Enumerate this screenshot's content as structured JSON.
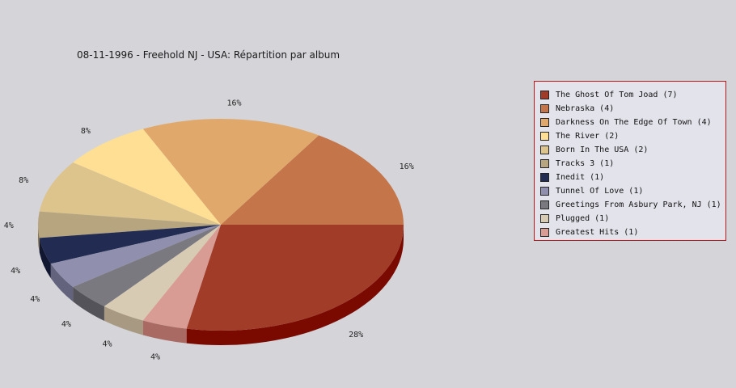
{
  "chart_data": {
    "type": "pie",
    "title": "08-11-1996 - Freehold NJ - USA:  Répartition par album",
    "slices": [
      {
        "legend": "The Ghost Of Tom Joad (7)",
        "value": 7,
        "percent_label": "28%",
        "color": "#a03c28",
        "side_color": "#7a0a00"
      },
      {
        "legend": "Nebraska (4)",
        "value": 4,
        "percent_label": "16%",
        "color": "#c4754a",
        "side_color": "#8f3e14"
      },
      {
        "legend": "Darkness On The Edge Of Town (4)",
        "value": 4,
        "percent_label": "16%",
        "color": "#e0a96b",
        "side_color": "#a8742f"
      },
      {
        "legend": "The River (2)",
        "value": 2,
        "percent_label": "8%",
        "color": "#fedf93",
        "side_color": "#c4a657"
      },
      {
        "legend": "Born In The USA (2)",
        "value": 2,
        "percent_label": "8%",
        "color": "#dcc48c",
        "side_color": "#a88f55"
      },
      {
        "legend": "Tracks 3 (1)",
        "value": 1,
        "percent_label": "4%",
        "color": "#b6a57f",
        "side_color": "#857552"
      },
      {
        "legend": "Inedit (1)",
        "value": 1,
        "percent_label": "4%",
        "color": "#222b52",
        "side_color": "#111730"
      },
      {
        "legend": "Tunnel Of Love (1)",
        "value": 1,
        "percent_label": "4%",
        "color": "#9090ae",
        "side_color": "#63637e"
      },
      {
        "legend": "Greetings From Asbury Park, NJ (1)",
        "value": 1,
        "percent_label": "4%",
        "color": "#7a7980",
        "side_color": "#54535a"
      },
      {
        "legend": "Plugged (1)",
        "value": 1,
        "percent_label": "4%",
        "color": "#d8cbb4",
        "side_color": "#a89a82"
      },
      {
        "legend": "Greatest Hits (1)",
        "value": 1,
        "percent_label": "4%",
        "color": "#d89c94",
        "side_color": "#a86a62"
      }
    ],
    "legend_position": "right"
  }
}
